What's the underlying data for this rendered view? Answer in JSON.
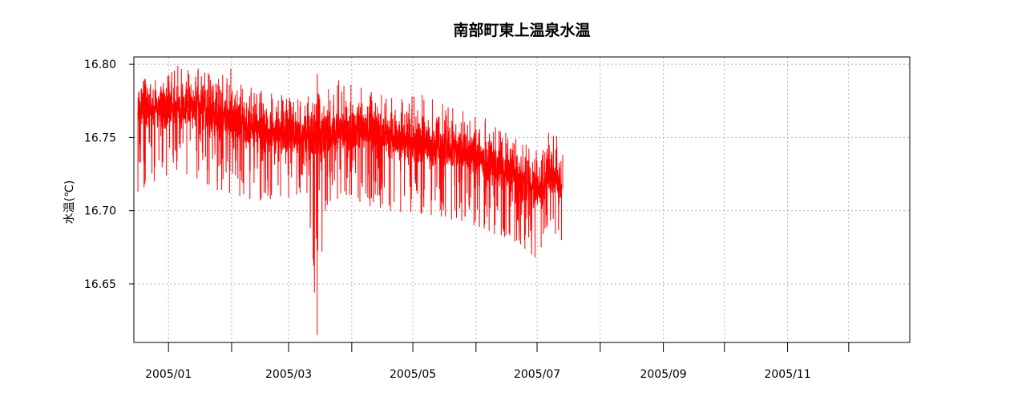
{
  "chart_data": {
    "type": "line",
    "title": "南部町東上温泉水温",
    "xlabel": "",
    "ylabel": "水温(℃)",
    "x_range": [
      "2004-12-15",
      "2005-12-31"
    ],
    "ylim": [
      16.61,
      16.805
    ],
    "y_ticks": [
      16.65,
      16.7,
      16.75,
      16.8
    ],
    "y_tick_labels": [
      "16.65",
      "16.70",
      "16.75",
      "16.80"
    ],
    "x_ticks": [
      "2005-01-01",
      "2005-02-01",
      "2005-03-01",
      "2005-04-01",
      "2005-05-01",
      "2005-06-01",
      "2005-07-01",
      "2005-08-01",
      "2005-09-01",
      "2005-10-01",
      "2005-11-01",
      "2005-12-01"
    ],
    "x_tick_labels": [
      {
        "date": "2005-01-01",
        "label": "2005/01"
      },
      {
        "date": "2005-03-01",
        "label": "2005/03"
      },
      {
        "date": "2005-05-01",
        "label": "2005/05"
      },
      {
        "date": "2005-07-01",
        "label": "2005/07"
      },
      {
        "date": "2005-09-01",
        "label": "2005/09"
      },
      {
        "date": "2005-11-01",
        "label": "2005/11"
      }
    ],
    "grid": true,
    "series": [
      {
        "color": "#ff0000",
        "x": [
          "2004-12-17",
          "2004-12-20",
          "2004-12-25",
          "2004-12-31",
          "2005-01-05",
          "2005-01-10",
          "2005-01-15",
          "2005-01-20",
          "2005-01-25",
          "2005-01-31",
          "2005-02-05",
          "2005-02-10",
          "2005-02-15",
          "2005-02-20",
          "2005-02-25",
          "2005-03-01",
          "2005-03-05",
          "2005-03-10",
          "2005-03-15",
          "2005-03-20",
          "2005-03-25",
          "2005-03-31",
          "2005-04-05",
          "2005-04-10",
          "2005-04-15",
          "2005-04-20",
          "2005-04-25",
          "2005-04-30",
          "2005-05-05",
          "2005-05-10",
          "2005-05-15",
          "2005-05-20",
          "2005-05-25",
          "2005-05-31",
          "2005-06-05",
          "2005-06-10",
          "2005-06-15",
          "2005-06-20",
          "2005-06-25",
          "2005-06-30",
          "2005-07-03",
          "2005-07-06",
          "2005-07-10",
          "2005-07-13"
        ],
        "values": [
          16.768,
          16.77,
          16.771,
          16.771,
          16.771,
          16.77,
          16.77,
          16.768,
          16.765,
          16.76,
          16.758,
          16.756,
          16.755,
          16.754,
          16.753,
          16.752,
          16.752,
          16.751,
          16.751,
          16.752,
          16.755,
          16.757,
          16.756,
          16.754,
          16.752,
          16.75,
          16.748,
          16.747,
          16.746,
          16.745,
          16.744,
          16.743,
          16.742,
          16.738,
          16.735,
          16.731,
          16.727,
          16.724,
          16.719,
          16.714,
          16.712,
          16.724,
          16.722,
          16.715
        ],
        "y_min": [
          16.713,
          16.716,
          16.72,
          16.724,
          16.728,
          16.725,
          16.722,
          16.718,
          16.714,
          16.712,
          16.71,
          16.708,
          16.707,
          16.708,
          16.71,
          16.709,
          16.711,
          16.712,
          16.615,
          16.704,
          16.708,
          16.711,
          16.706,
          16.703,
          16.702,
          16.7,
          16.699,
          16.699,
          16.698,
          16.697,
          16.696,
          16.694,
          16.693,
          16.69,
          16.688,
          16.684,
          16.682,
          16.679,
          16.674,
          16.668,
          16.675,
          16.69,
          16.684,
          16.68
        ],
        "y_max": [
          16.781,
          16.79,
          16.789,
          16.792,
          16.799,
          16.796,
          16.797,
          16.794,
          16.79,
          16.797,
          16.786,
          16.784,
          16.782,
          16.78,
          16.779,
          16.777,
          16.776,
          16.778,
          16.78,
          16.783,
          16.789,
          16.786,
          16.784,
          16.781,
          16.779,
          16.777,
          16.776,
          16.778,
          16.779,
          16.776,
          16.773,
          16.77,
          16.768,
          16.764,
          16.763,
          16.757,
          16.753,
          16.749,
          16.745,
          16.741,
          16.738,
          16.753,
          16.751,
          16.738
        ]
      }
    ]
  }
}
